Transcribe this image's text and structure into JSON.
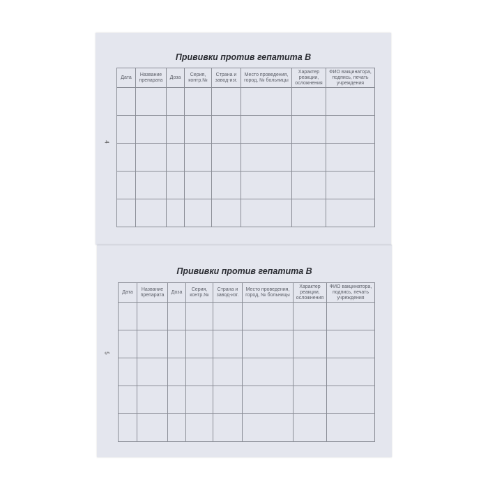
{
  "pages": [
    {
      "number": "4",
      "title": "Прививки против гепатита B"
    },
    {
      "number": "5",
      "title": "Прививки против гепатита B"
    }
  ],
  "table": {
    "columns": [
      "Дата",
      "Название препарата",
      "Доза",
      "Серия, контр.№",
      "Страна и завод-изг.",
      "Место проведения, город, № больницы",
      "Характер реакции, осложнения",
      "ФИО вакцинатора, подпись, печать учреждения"
    ],
    "empty_rows": 5
  }
}
